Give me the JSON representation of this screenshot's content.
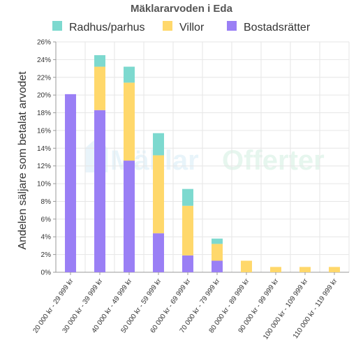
{
  "chart_data": {
    "type": "bar",
    "stacked": true,
    "title": "Mäklararvoden i Eda",
    "ylabel": "Andelen säljare som betalat arvodet",
    "xlabel": "",
    "ylim": [
      0,
      26
    ],
    "y_ticks": [
      "0%",
      "2%",
      "4%",
      "6%",
      "8%",
      "10%",
      "12%",
      "14%",
      "16%",
      "18%",
      "20%",
      "22%",
      "24%",
      "26%"
    ],
    "grid": true,
    "legend_position": "top",
    "categories": [
      "20 000 kr - 29 999 kr",
      "30 000 kr - 39 999 kr",
      "40 000 kr - 49 999 kr",
      "50 000 kr - 59 999 kr",
      "60 000 kr - 69 999 kr",
      "70 000 kr - 79 999 kr",
      "80 000 kr - 89 999 kr",
      "90 000 kr - 99 999 kr",
      "100 000 kr - 109 999 kr",
      "110 000 kr - 119 999 kr"
    ],
    "series": [
      {
        "name": "Bostadsrätter",
        "color": "#9a7ff5",
        "values": [
          20.1,
          18.3,
          12.6,
          4.4,
          1.9,
          1.3,
          0,
          0,
          0,
          0
        ]
      },
      {
        "name": "Villor",
        "color": "#ffd86b",
        "values": [
          0,
          4.9,
          8.8,
          8.8,
          5.6,
          1.9,
          1.3,
          0.6,
          0.6,
          0.6
        ]
      },
      {
        "name": "Radhus/parhus",
        "color": "#7dd9cf",
        "values": [
          0,
          1.3,
          1.8,
          2.5,
          1.9,
          0.6,
          0,
          0,
          0,
          0
        ]
      }
    ],
    "legend_order": [
      "Radhus/parhus",
      "Villor",
      "Bostadsrätter"
    ]
  },
  "watermark": {
    "part1": "Mäklar",
    "part2": "Offerter"
  }
}
